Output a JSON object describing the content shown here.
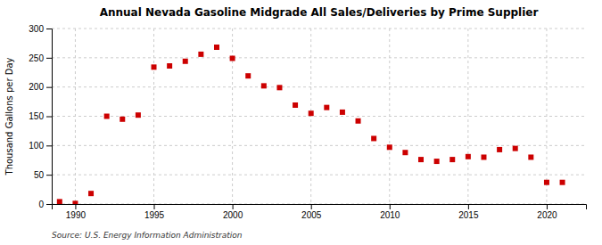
{
  "chart_data": {
    "type": "scatter",
    "title": "Annual Nevada Gasoline Midgrade All Sales/Deliveries by Prime Supplier",
    "ylabel": "Thousand Gallons per Day",
    "annotations": [
      "Source: U.S. Energy Information Administration"
    ],
    "x": [
      1989,
      1990,
      1991,
      1992,
      1993,
      1994,
      1995,
      1996,
      1997,
      1998,
      1999,
      2000,
      2001,
      2002,
      2003,
      2004,
      2005,
      2006,
      2007,
      2008,
      2009,
      2010,
      2011,
      2012,
      2013,
      2014,
      2015,
      2016,
      2017,
      2018,
      2019,
      2020,
      2021
    ],
    "values": [
      4,
      1,
      18,
      150,
      145,
      152,
      234,
      236,
      244,
      256,
      268,
      249,
      219,
      202,
      199,
      169,
      155,
      165,
      157,
      142,
      112,
      97,
      88,
      76,
      73,
      76,
      81,
      80,
      93,
      95,
      80,
      37,
      37
    ],
    "color": "#cc0000",
    "marker": "square",
    "xlim": [
      1988.5,
      2022.5
    ],
    "ylim": [
      0,
      300
    ],
    "xticks": [
      1990,
      1995,
      2000,
      2005,
      2010,
      2015,
      2020
    ],
    "yticks": [
      0,
      50,
      100,
      150,
      200,
      250,
      300
    ],
    "grid": true
  }
}
